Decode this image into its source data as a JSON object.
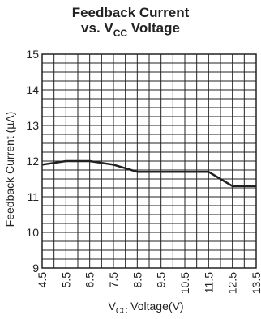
{
  "chart_data": {
    "type": "line",
    "title_line1": "Feedback Current",
    "title_line2_prefix": "vs. V",
    "title_line2_sub": "CC",
    "title_line2_suffix": " Voltage",
    "xlabel_main": "V",
    "xlabel_sub": "CC",
    "xlabel_suffix": "  Voltage(V)",
    "ylabel": "Feedback Current (µA)",
    "xlim": [
      4.5,
      13.5
    ],
    "ylim": [
      9,
      15
    ],
    "x_ticks": [
      "4.5",
      "5.5",
      "6.5",
      "7.5",
      "8.5",
      "9.5",
      "10.5",
      "11.5",
      "12.5",
      "13.5"
    ],
    "y_ticks": [
      "9",
      "10",
      "11",
      "12",
      "13",
      "14",
      "15"
    ],
    "grid": true,
    "series": [
      {
        "x": [
          4.5,
          5.0,
          5.5,
          6.0,
          6.5,
          7.0,
          7.5,
          8.0,
          8.5,
          9.0,
          9.5,
          10.0,
          10.5,
          11.0,
          11.5,
          12.0,
          12.5,
          13.0,
          13.5
        ],
        "y": [
          11.9,
          11.95,
          12.0,
          12.0,
          12.0,
          11.95,
          11.9,
          11.8,
          11.7,
          11.7,
          11.7,
          11.7,
          11.7,
          11.7,
          11.7,
          11.5,
          11.3,
          11.3,
          11.3
        ]
      }
    ],
    "line_color": "#222222",
    "grid_color": "#222222"
  }
}
